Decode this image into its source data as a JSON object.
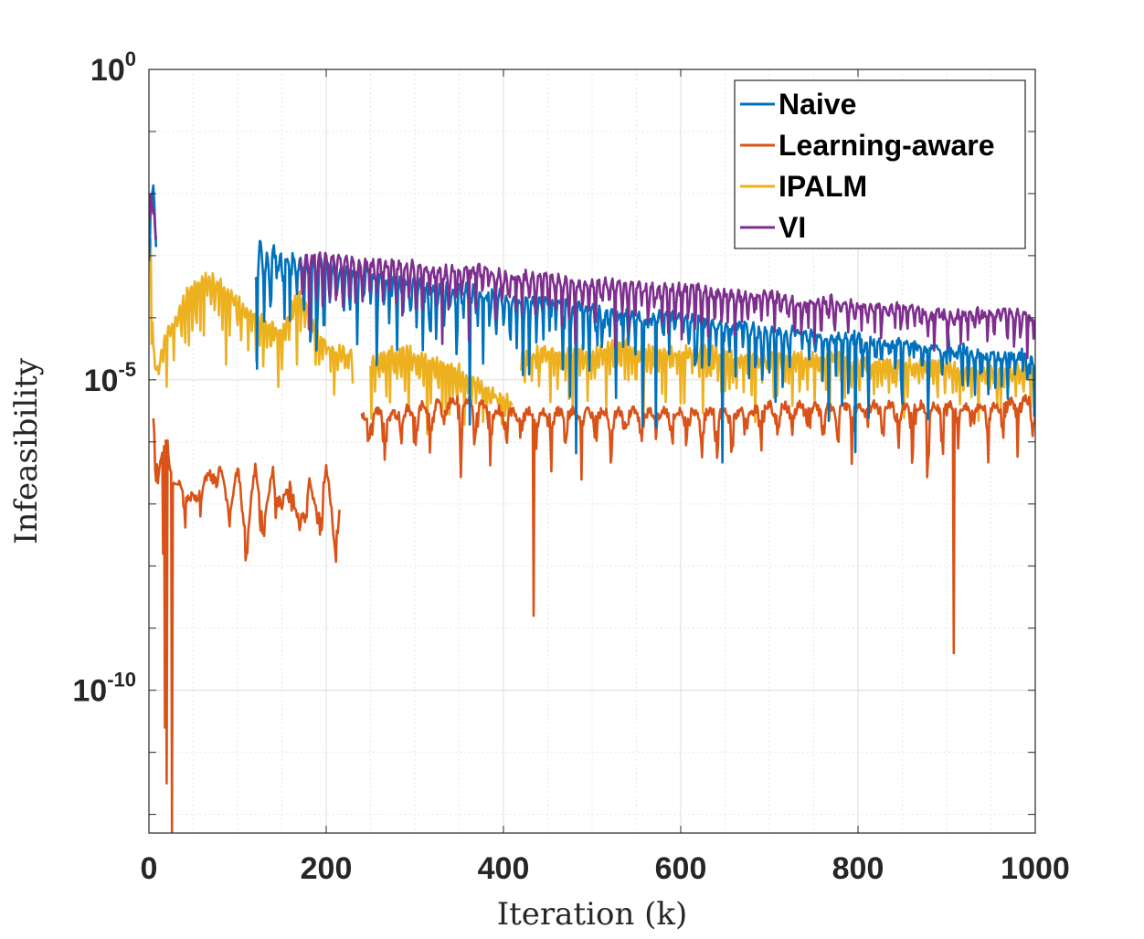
{
  "chart_data": {
    "type": "line",
    "title": "",
    "xlabel": "Iteration (k)",
    "ylabel": "Infeasibility",
    "xlim": [
      0,
      1000
    ],
    "ylim_log10": [
      -12.3,
      0
    ],
    "yscale": "log",
    "grid": true,
    "minor_grid": true,
    "legend_position": "top-right",
    "x_ticks": [
      0,
      200,
      400,
      600,
      800,
      1000
    ],
    "x_tick_labels": [
      "0",
      "200",
      "400",
      "600",
      "800",
      "1000"
    ],
    "y_ticks": [
      {
        "exp": 0,
        "base": "10",
        "sup": "0"
      },
      {
        "exp": -5,
        "base": "10",
        "sup": "-5"
      },
      {
        "exp": -10,
        "base": "10",
        "sup": "-10"
      }
    ],
    "series": [
      {
        "name": "Naive",
        "color": "#0072BD",
        "segments": [
          {
            "x": [
              0,
              2,
              4,
              6,
              8
            ],
            "logy": [
              -3.2,
              -2.2,
              -1.9,
              -2.0,
              -3.0
            ]
          },
          {
            "x": [
              120,
              125,
              130,
              140,
              160,
              180,
              200,
              220,
              240,
              260,
              280,
              300,
              320,
              340,
              360,
              380,
              400,
              420,
              440,
              460,
              480,
              500,
              520,
              540,
              560,
              580,
              600,
              620,
              640,
              660,
              680,
              700,
              720,
              740,
              760,
              780,
              800,
              820,
              840,
              860,
              880,
              900,
              920,
              940,
              960,
              980,
              1000
            ],
            "logy": [
              -3.3,
              -2.8,
              -3.0,
              -2.9,
              -3.0,
              -3.1,
              -3.1,
              -3.2,
              -3.2,
              -3.3,
              -3.4,
              -3.4,
              -3.5,
              -3.5,
              -3.5,
              -3.6,
              -3.6,
              -3.7,
              -3.7,
              -3.7,
              -3.8,
              -3.8,
              -3.9,
              -3.9,
              -4.0,
              -3.9,
              -4.0,
              -4.0,
              -4.1,
              -4.1,
              -4.1,
              -4.2,
              -4.2,
              -4.2,
              -4.3,
              -4.3,
              -4.3,
              -4.4,
              -4.4,
              -4.4,
              -4.5,
              -4.5,
              -4.5,
              -4.6,
              -4.6,
              -4.6,
              -4.7
            ],
            "dip_floor": [
              -4.2,
              -4.4,
              -4.6,
              -4.8,
              -5.0,
              -5.2,
              -5.5,
              -5.7,
              -6.0,
              -6.2,
              -6.6,
              -7.0,
              -7.3
            ]
          }
        ]
      },
      {
        "name": "Learning-aware",
        "color": "#D95319",
        "segments": [
          {
            "x": [
              5,
              10,
              15,
              20,
              25,
              30,
              40,
              50,
              60,
              70,
              80,
              90,
              100,
              110,
              120,
              130,
              140,
              150,
              160,
              170,
              180,
              190,
              200,
              210,
              215
            ],
            "logy": [
              -5.5,
              -6.5,
              -6.2,
              -5.8,
              -6.4,
              -6.6,
              -6.7,
              -6.9,
              -6.6,
              -6.5,
              -6.4,
              -7.0,
              -6.4,
              -7.5,
              -6.4,
              -7.3,
              -6.4,
              -7.0,
              -6.5,
              -7.4,
              -6.5,
              -7.2,
              -6.4,
              -7.5,
              -7.0
            ],
            "deep": [
              {
                "x": 18,
                "logy": -10.6
              },
              {
                "x": 20,
                "logy": -11.5
              },
              {
                "x": 26,
                "logy": -12.3
              },
              {
                "x": 16,
                "logy": -7.8
              }
            ]
          },
          {
            "x": [
              240,
              260,
              280,
              300,
              320,
              340,
              360,
              380,
              400,
              420,
              440,
              460,
              480,
              500,
              520,
              540,
              560,
              580,
              600,
              620,
              640,
              660,
              680,
              700,
              720,
              740,
              760,
              780,
              800,
              820,
              840,
              860,
              880,
              900,
              920,
              940,
              960,
              980,
              1000
            ],
            "logy": [
              -5.6,
              -5.5,
              -5.5,
              -5.4,
              -5.4,
              -5.3,
              -5.3,
              -5.4,
              -5.5,
              -5.5,
              -5.5,
              -5.5,
              -5.5,
              -5.5,
              -5.5,
              -5.5,
              -5.5,
              -5.5,
              -5.5,
              -5.5,
              -5.5,
              -5.5,
              -5.5,
              -5.4,
              -5.4,
              -5.4,
              -5.4,
              -5.4,
              -5.4,
              -5.4,
              -5.4,
              -5.4,
              -5.4,
              -5.4,
              -5.4,
              -5.4,
              -5.4,
              -5.3,
              -5.3
            ],
            "dip_floor": [
              -6.4,
              -6.8,
              -6.2,
              -7.3,
              -6.6,
              -7.6,
              -6.9,
              -7.1
            ],
            "deep": [
              {
                "x": 434,
                "logy": -8.8
              },
              {
                "x": 908,
                "logy": -9.4
              }
            ]
          }
        ]
      },
      {
        "name": "IPALM",
        "color": "#EDB120",
        "segments": [
          {
            "x": [
              0,
              2,
              5,
              10,
              20,
              30,
              40,
              50,
              60,
              70,
              80,
              90,
              100,
              110,
              120,
              130,
              140,
              150,
              160,
              170,
              180,
              190,
              200,
              210,
              220,
              230
            ],
            "logy": [
              -2.9,
              -2.5,
              -4.5,
              -4.8,
              -4.2,
              -4.0,
              -3.6,
              -3.4,
              -3.3,
              -3.3,
              -3.4,
              -3.5,
              -3.7,
              -3.8,
              -3.9,
              -4.0,
              -4.1,
              -4.2,
              -3.8,
              -3.6,
              -3.8,
              -4.2,
              -4.4,
              -4.5,
              -4.5,
              -4.6
            ],
            "dip_floor": -5.8
          },
          {
            "x": [
              250,
              270,
              290,
              310,
              330,
              350,
              370,
              390,
              410
            ],
            "logy": [
              -4.6,
              -4.5,
              -4.5,
              -4.6,
              -4.7,
              -4.8,
              -5.0,
              -5.2,
              -5.3
            ],
            "dip_floor": -6.5
          },
          {
            "x": [
              420,
              440,
              460,
              480,
              500,
              520,
              540,
              560,
              580,
              600,
              620,
              640,
              660,
              680,
              700,
              720,
              740,
              760,
              780,
              800,
              820,
              840,
              860,
              880,
              900,
              920,
              940,
              960,
              980,
              1000
            ],
            "logy": [
              -4.6,
              -4.5,
              -4.5,
              -4.5,
              -4.5,
              -4.4,
              -4.4,
              -4.5,
              -4.5,
              -4.5,
              -4.5,
              -4.5,
              -4.6,
              -4.6,
              -4.6,
              -4.6,
              -4.6,
              -4.6,
              -4.6,
              -4.7,
              -4.7,
              -4.7,
              -4.7,
              -4.7,
              -4.7,
              -4.8,
              -4.8,
              -4.8,
              -4.8,
              -4.8
            ],
            "dip_floor": -6.3
          }
        ]
      },
      {
        "name": "VI",
        "color": "#7E2F8E",
        "segments": [
          {
            "x": [
              0,
              2,
              4,
              6,
              8
            ],
            "logy": [
              -2.5,
              -2.1,
              -2.2,
              -2.4,
              -2.7
            ]
          },
          {
            "x": [
              170,
              180,
              200,
              220,
              240,
              260,
              280,
              300,
              320,
              340,
              360,
              380,
              400,
              420,
              440,
              460,
              480,
              500,
              520,
              540,
              560,
              580,
              600,
              620,
              640,
              660,
              680,
              700,
              720,
              740,
              760,
              780,
              800,
              820,
              840,
              860,
              880,
              900,
              920,
              940,
              960,
              980,
              1000
            ],
            "logy": [
              -3.1,
              -3.0,
              -3.0,
              -3.0,
              -3.1,
              -3.1,
              -3.1,
              -3.1,
              -3.2,
              -3.2,
              -3.2,
              -3.2,
              -3.3,
              -3.3,
              -3.3,
              -3.3,
              -3.4,
              -3.4,
              -3.4,
              -3.4,
              -3.5,
              -3.5,
              -3.5,
              -3.5,
              -3.6,
              -3.6,
              -3.6,
              -3.6,
              -3.7,
              -3.7,
              -3.7,
              -3.7,
              -3.8,
              -3.8,
              -3.8,
              -3.8,
              -3.9,
              -3.9,
              -3.9,
              -3.9,
              -3.9,
              -3.9,
              -4.0
            ],
            "dip_floor": -4.9
          }
        ]
      }
    ]
  }
}
